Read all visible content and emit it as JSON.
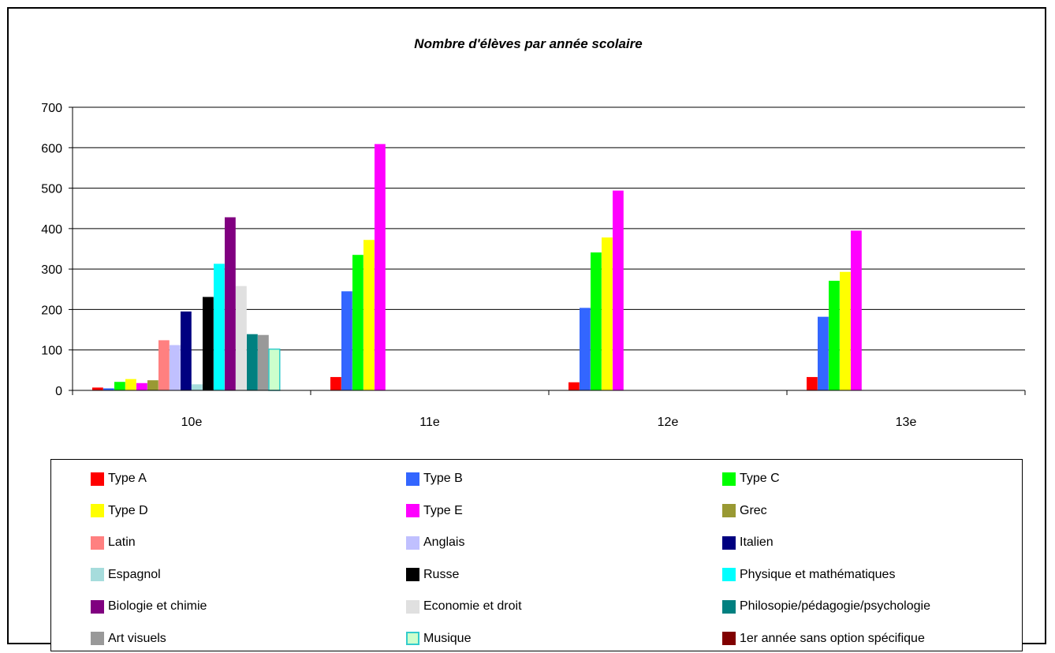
{
  "chart_data": {
    "type": "bar",
    "title": "Nombre d'élèves par année scolaire",
    "xlabel": "",
    "ylabel": "",
    "ylim": [
      0,
      700
    ],
    "yticks": [
      0,
      100,
      200,
      300,
      400,
      500,
      600,
      700
    ],
    "grid": true,
    "legend_position": "bottom",
    "categories": [
      "10e",
      "11e",
      "12e",
      "13e"
    ],
    "series": [
      {
        "name": "Type A",
        "color": "#FF0000",
        "values": [
          7,
          33,
          20,
          33
        ]
      },
      {
        "name": "Type B",
        "color": "#3366FF",
        "values": [
          5,
          245,
          204,
          182
        ]
      },
      {
        "name": "Type C",
        "color": "#00FF00",
        "values": [
          21,
          335,
          341,
          271
        ]
      },
      {
        "name": "Type D",
        "color": "#FFFF00",
        "values": [
          28,
          372,
          378,
          293
        ]
      },
      {
        "name": "Type E",
        "color": "#FF00FF",
        "values": [
          18,
          609,
          494,
          395
        ]
      },
      {
        "name": "Grec",
        "color": "#999933",
        "values": [
          25,
          0,
          0,
          0
        ]
      },
      {
        "name": "Latin",
        "color": "#FF8080",
        "values": [
          124,
          0,
          0,
          0
        ]
      },
      {
        "name": "Anglais",
        "color": "#C0C0FF",
        "values": [
          112,
          0,
          0,
          0
        ]
      },
      {
        "name": "Italien",
        "color": "#000080",
        "values": [
          195,
          0,
          0,
          0
        ]
      },
      {
        "name": "Espagnol",
        "color": "#A6DCDC",
        "values": [
          15,
          0,
          0,
          0
        ]
      },
      {
        "name": "Russe",
        "color": "#000000",
        "values": [
          231,
          0,
          0,
          0
        ]
      },
      {
        "name": "Physique et mathématiques",
        "color": "#00FFFF",
        "values": [
          313,
          0,
          0,
          0
        ]
      },
      {
        "name": "Biologie et chimie",
        "color": "#800080",
        "values": [
          428,
          0,
          0,
          0
        ]
      },
      {
        "name": "Economie et droit",
        "color": "#E0E0E0",
        "values": [
          258,
          0,
          0,
          0
        ]
      },
      {
        "name": "Philosopie/pédagogie/psychologie",
        "color": "#008080",
        "values": [
          139,
          0,
          0,
          0
        ]
      },
      {
        "name": "Art visuels",
        "color": "#999999",
        "values": [
          137,
          0,
          0,
          0
        ]
      },
      {
        "name": "Musique",
        "color": "#CCFFCC",
        "border": "#33CCCC",
        "values": [
          102,
          0,
          0,
          0
        ]
      },
      {
        "name": "1er année sans option spécifique",
        "color": "#800000",
        "values": [
          0,
          0,
          0,
          0
        ]
      }
    ]
  }
}
